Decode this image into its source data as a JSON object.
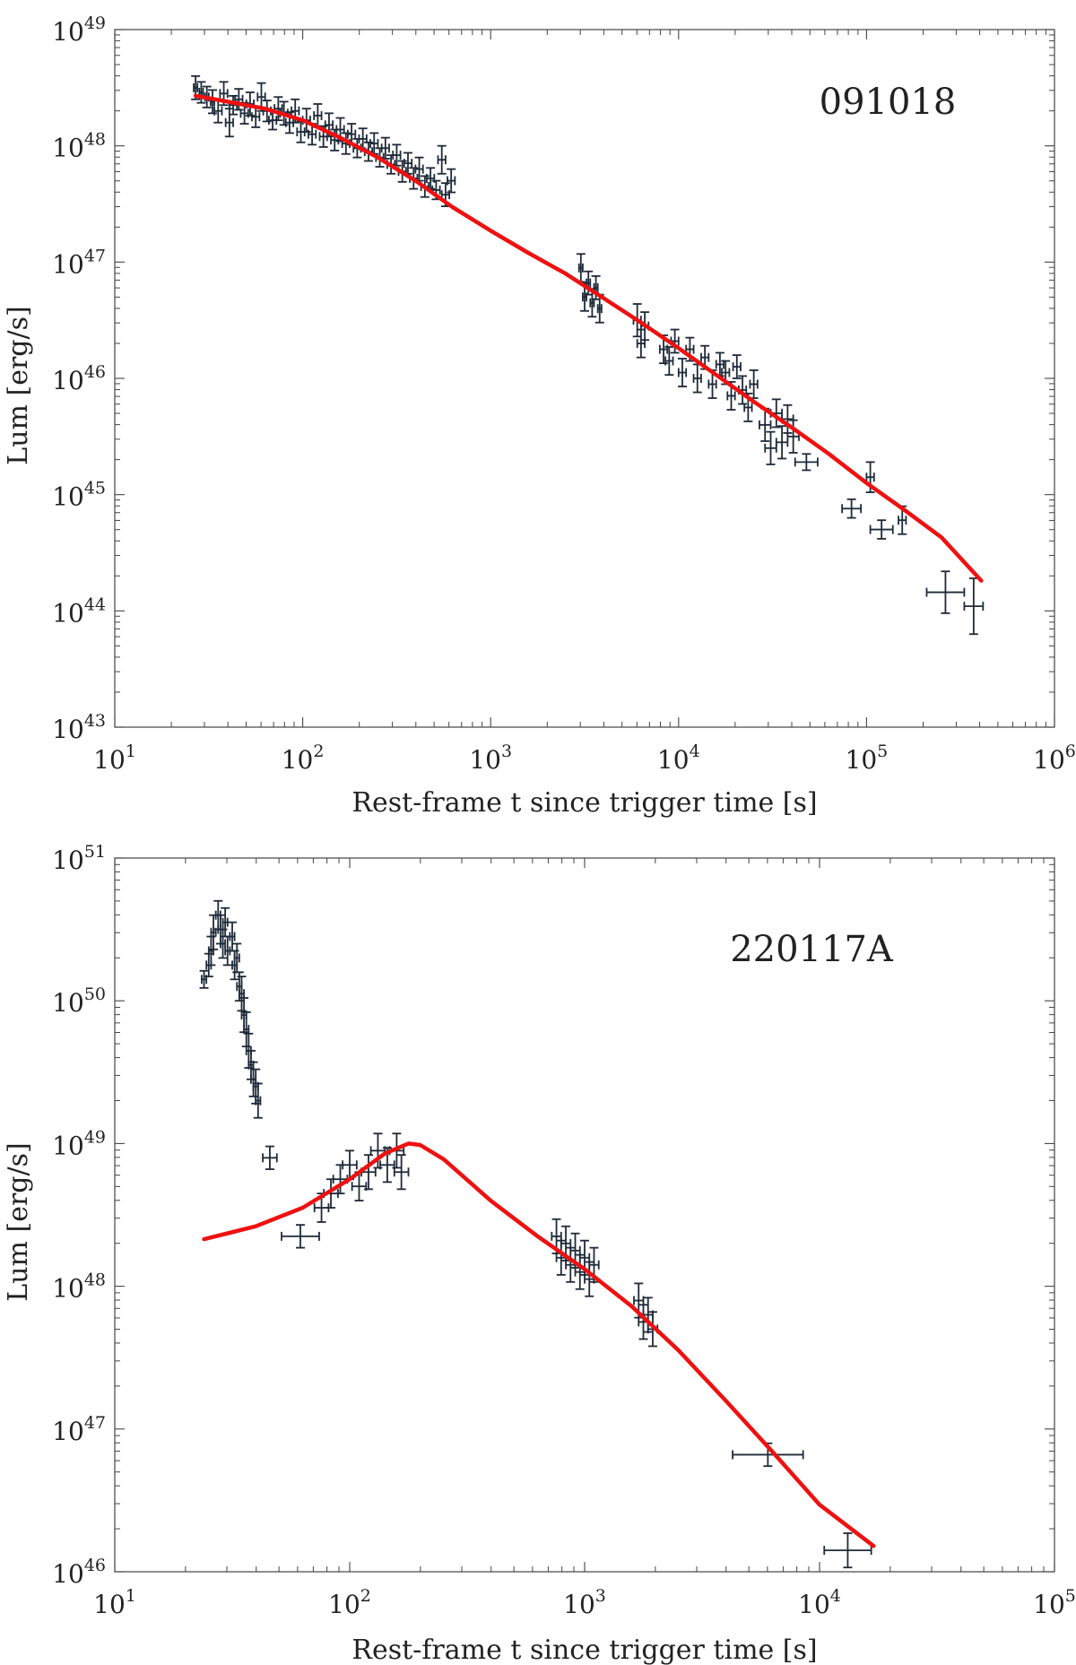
{
  "chart_data": [
    {
      "type": "scatter",
      "annotation": "091018",
      "xlabel": "Rest-frame t since trigger time [s]",
      "ylabel": "Lum [erg/s]",
      "xscale": "log",
      "yscale": "log",
      "xlim_exp": [
        1,
        6
      ],
      "ylim_exp": [
        43,
        49
      ],
      "x_tick_labels": [
        {
          "base": "10",
          "exp": "1"
        },
        {
          "base": "10",
          "exp": "2"
        },
        {
          "base": "10",
          "exp": "3"
        },
        {
          "base": "10",
          "exp": "4"
        },
        {
          "base": "10",
          "exp": "5"
        },
        {
          "base": "10",
          "exp": "6"
        }
      ],
      "y_tick_labels": [
        {
          "base": "10",
          "exp": "43"
        },
        {
          "base": "10",
          "exp": "44"
        },
        {
          "base": "10",
          "exp": "45"
        },
        {
          "base": "10",
          "exp": "46"
        },
        {
          "base": "10",
          "exp": "47"
        },
        {
          "base": "10",
          "exp": "48"
        },
        {
          "base": "10",
          "exp": "49"
        }
      ],
      "colors": {
        "data": "#1e2a38",
        "model": "#ee1111"
      },
      "series": [
        {
          "name": "data",
          "note": "values as log10(t [s]), log10(L [erg/s]); xerr/yerr in dex",
          "points": [
            [
              1.43,
              48.5,
              0.01,
              0.1
            ],
            [
              1.46,
              48.46,
              0.01,
              0.09
            ],
            [
              1.49,
              48.42,
              0.01,
              0.09
            ],
            [
              1.52,
              48.38,
              0.01,
              0.1
            ],
            [
              1.55,
              48.3,
              0.02,
              0.1
            ],
            [
              1.58,
              48.45,
              0.02,
              0.1
            ],
            [
              1.61,
              48.2,
              0.02,
              0.12
            ],
            [
              1.63,
              48.35,
              0.02,
              0.08
            ],
            [
              1.66,
              48.4,
              0.02,
              0.09
            ],
            [
              1.69,
              48.28,
              0.02,
              0.09
            ],
            [
              1.72,
              48.36,
              0.02,
              0.1
            ],
            [
              1.75,
              48.25,
              0.02,
              0.09
            ],
            [
              1.78,
              48.42,
              0.02,
              0.12
            ],
            [
              1.81,
              48.3,
              0.02,
              0.09
            ],
            [
              1.84,
              48.22,
              0.02,
              0.08
            ],
            [
              1.87,
              48.32,
              0.02,
              0.1
            ],
            [
              1.9,
              48.28,
              0.02,
              0.1
            ],
            [
              1.93,
              48.2,
              0.02,
              0.09
            ],
            [
              1.96,
              48.3,
              0.02,
              0.1
            ],
            [
              1.99,
              48.12,
              0.02,
              0.09
            ],
            [
              2.02,
              48.22,
              0.02,
              0.1
            ],
            [
              2.05,
              48.1,
              0.02,
              0.09
            ],
            [
              2.08,
              48.26,
              0.02,
              0.1
            ],
            [
              2.11,
              48.08,
              0.02,
              0.09
            ],
            [
              2.14,
              48.18,
              0.02,
              0.1
            ],
            [
              2.17,
              48.05,
              0.02,
              0.09
            ],
            [
              2.2,
              48.14,
              0.02,
              0.1
            ],
            [
              2.23,
              48.02,
              0.02,
              0.09
            ],
            [
              2.26,
              48.1,
              0.02,
              0.09
            ],
            [
              2.29,
              47.98,
              0.02,
              0.08
            ],
            [
              2.32,
              48.06,
              0.02,
              0.09
            ],
            [
              2.35,
              47.95,
              0.02,
              0.08
            ],
            [
              2.38,
              48.02,
              0.02,
              0.09
            ],
            [
              2.41,
              47.9,
              0.02,
              0.08
            ],
            [
              2.44,
              47.98,
              0.02,
              0.09
            ],
            [
              2.47,
              47.84,
              0.02,
              0.08
            ],
            [
              2.5,
              47.92,
              0.02,
              0.09
            ],
            [
              2.53,
              47.78,
              0.02,
              0.09
            ],
            [
              2.56,
              47.85,
              0.02,
              0.09
            ],
            [
              2.59,
              47.72,
              0.02,
              0.09
            ],
            [
              2.62,
              47.8,
              0.02,
              0.1
            ],
            [
              2.65,
              47.65,
              0.02,
              0.09
            ],
            [
              2.68,
              47.72,
              0.02,
              0.09
            ],
            [
              2.71,
              47.62,
              0.02,
              0.08
            ],
            [
              2.74,
              47.88,
              0.02,
              0.12
            ],
            [
              2.76,
              47.58,
              0.02,
              0.1
            ],
            [
              2.79,
              47.7,
              0.02,
              0.1
            ],
            [
              3.48,
              46.95,
              0.01,
              0.12
            ],
            [
              3.5,
              46.7,
              0.01,
              0.12
            ],
            [
              3.52,
              46.82,
              0.01,
              0.1
            ],
            [
              3.54,
              46.65,
              0.01,
              0.12
            ],
            [
              3.56,
              46.78,
              0.01,
              0.1
            ],
            [
              3.58,
              46.6,
              0.01,
              0.12
            ],
            [
              3.78,
              46.5,
              0.02,
              0.14
            ],
            [
              3.8,
              46.3,
              0.02,
              0.12
            ],
            [
              3.82,
              46.45,
              0.02,
              0.12
            ],
            [
              3.92,
              46.25,
              0.02,
              0.12
            ],
            [
              3.95,
              46.15,
              0.02,
              0.12
            ],
            [
              3.98,
              46.32,
              0.02,
              0.1
            ],
            [
              4.02,
              46.05,
              0.02,
              0.12
            ],
            [
              4.06,
              46.25,
              0.02,
              0.1
            ],
            [
              4.1,
              46.0,
              0.02,
              0.12
            ],
            [
              4.14,
              46.18,
              0.02,
              0.1
            ],
            [
              4.18,
              45.95,
              0.02,
              0.12
            ],
            [
              4.22,
              46.12,
              0.02,
              0.1
            ],
            [
              4.25,
              46.05,
              0.02,
              0.1
            ],
            [
              4.28,
              45.85,
              0.02,
              0.12
            ],
            [
              4.31,
              46.1,
              0.02,
              0.1
            ],
            [
              4.34,
              45.9,
              0.02,
              0.12
            ],
            [
              4.37,
              45.75,
              0.02,
              0.12
            ],
            [
              4.4,
              45.95,
              0.02,
              0.12
            ],
            [
              4.46,
              45.6,
              0.03,
              0.14
            ],
            [
              4.49,
              45.4,
              0.03,
              0.14
            ],
            [
              4.52,
              45.7,
              0.03,
              0.12
            ],
            [
              4.55,
              45.45,
              0.03,
              0.14
            ],
            [
              4.58,
              45.65,
              0.03,
              0.12
            ],
            [
              4.61,
              45.5,
              0.03,
              0.14
            ],
            [
              4.68,
              45.28,
              0.06,
              0.07
            ],
            [
              4.92,
              44.88,
              0.05,
              0.08
            ],
            [
              5.02,
              45.15,
              0.02,
              0.13
            ],
            [
              5.08,
              44.7,
              0.06,
              0.08
            ],
            [
              5.19,
              44.78,
              0.02,
              0.12
            ],
            [
              5.42,
              44.16,
              0.1,
              0.18
            ],
            [
              5.57,
              44.04,
              0.05,
              0.24
            ]
          ]
        },
        {
          "name": "model",
          "points": [
            [
              1.43,
              48.43
            ],
            [
              1.6,
              48.38
            ],
            [
              1.8,
              48.32
            ],
            [
              2.0,
              48.22
            ],
            [
              2.2,
              48.07
            ],
            [
              2.4,
              47.9
            ],
            [
              2.6,
              47.7
            ],
            [
              2.8,
              47.47
            ],
            [
              3.0,
              47.27
            ],
            [
              3.2,
              47.08
            ],
            [
              3.4,
              46.9
            ],
            [
              3.6,
              46.69
            ],
            [
              3.8,
              46.48
            ],
            [
              4.0,
              46.26
            ],
            [
              4.2,
              46.03
            ],
            [
              4.4,
              45.8
            ],
            [
              4.6,
              45.58
            ],
            [
              4.8,
              45.35
            ],
            [
              5.0,
              45.1
            ],
            [
              5.2,
              44.87
            ],
            [
              5.4,
              44.63
            ],
            [
              5.61,
              44.26
            ]
          ]
        }
      ]
    },
    {
      "type": "scatter",
      "annotation": "220117A",
      "xlabel": "Rest-frame t since trigger time [s]",
      "ylabel": "Lum [erg/s]",
      "xscale": "log",
      "yscale": "log",
      "xlim_exp": [
        1,
        5
      ],
      "ylim_exp": [
        46,
        51
      ],
      "x_tick_labels": [
        {
          "base": "10",
          "exp": "1"
        },
        {
          "base": "10",
          "exp": "2"
        },
        {
          "base": "10",
          "exp": "3"
        },
        {
          "base": "10",
          "exp": "4"
        },
        {
          "base": "10",
          "exp": "5"
        }
      ],
      "y_tick_labels": [
        {
          "base": "10",
          "exp": "46"
        },
        {
          "base": "10",
          "exp": "47"
        },
        {
          "base": "10",
          "exp": "48"
        },
        {
          "base": "10",
          "exp": "49"
        },
        {
          "base": "10",
          "exp": "50"
        },
        {
          "base": "10",
          "exp": "51"
        }
      ],
      "colors": {
        "data": "#1e2a38",
        "model": "#ee1111"
      },
      "series": [
        {
          "name": "data",
          "note": "values as log10(t [s]), log10(L [erg/s]); xerr/yerr in dex",
          "points": [
            [
              1.38,
              50.15,
              0.01,
              0.06
            ],
            [
              1.4,
              50.25,
              0.01,
              0.08
            ],
            [
              1.41,
              50.35,
              0.01,
              0.1
            ],
            [
              1.42,
              50.48,
              0.01,
              0.12
            ],
            [
              1.44,
              50.6,
              0.01,
              0.1
            ],
            [
              1.45,
              50.5,
              0.01,
              0.1
            ],
            [
              1.46,
              50.4,
              0.01,
              0.1
            ],
            [
              1.47,
              50.55,
              0.01,
              0.1
            ],
            [
              1.48,
              50.35,
              0.01,
              0.1
            ],
            [
              1.5,
              50.45,
              0.01,
              0.1
            ],
            [
              1.51,
              50.25,
              0.01,
              0.1
            ],
            [
              1.52,
              50.3,
              0.01,
              0.1
            ],
            [
              1.53,
              50.1,
              0.01,
              0.1
            ],
            [
              1.54,
              50.05,
              0.01,
              0.12
            ],
            [
              1.55,
              49.9,
              0.01,
              0.12
            ],
            [
              1.56,
              49.8,
              0.01,
              0.12
            ],
            [
              1.57,
              49.65,
              0.01,
              0.12
            ],
            [
              1.58,
              49.55,
              0.01,
              0.1
            ],
            [
              1.59,
              49.45,
              0.01,
              0.12
            ],
            [
              1.6,
              49.4,
              0.01,
              0.12
            ],
            [
              1.61,
              49.3,
              0.01,
              0.12
            ],
            [
              1.66,
              48.9,
              0.03,
              0.08
            ],
            [
              1.79,
              48.35,
              0.08,
              0.08
            ],
            [
              1.88,
              48.55,
              0.03,
              0.1
            ],
            [
              1.92,
              48.65,
              0.03,
              0.1
            ],
            [
              1.96,
              48.75,
              0.03,
              0.1
            ],
            [
              2.0,
              48.85,
              0.03,
              0.1
            ],
            [
              2.04,
              48.7,
              0.03,
              0.1
            ],
            [
              2.08,
              48.8,
              0.03,
              0.12
            ],
            [
              2.12,
              48.95,
              0.03,
              0.12
            ],
            [
              2.16,
              48.85,
              0.03,
              0.12
            ],
            [
              2.2,
              48.95,
              0.03,
              0.12
            ],
            [
              2.22,
              48.8,
              0.03,
              0.12
            ],
            [
              2.88,
              48.35,
              0.02,
              0.12
            ],
            [
              2.9,
              48.2,
              0.02,
              0.12
            ],
            [
              2.92,
              48.3,
              0.02,
              0.12
            ],
            [
              2.94,
              48.15,
              0.02,
              0.12
            ],
            [
              2.96,
              48.25,
              0.02,
              0.12
            ],
            [
              2.98,
              48.1,
              0.02,
              0.12
            ],
            [
              3.0,
              48.2,
              0.02,
              0.12
            ],
            [
              3.02,
              48.05,
              0.02,
              0.12
            ],
            [
              3.04,
              48.15,
              0.02,
              0.12
            ],
            [
              3.23,
              47.9,
              0.02,
              0.12
            ],
            [
              3.25,
              47.75,
              0.02,
              0.12
            ],
            [
              3.27,
              47.8,
              0.02,
              0.12
            ],
            [
              3.29,
              47.7,
              0.02,
              0.12
            ],
            [
              3.78,
              46.82,
              0.15,
              0.08
            ],
            [
              4.12,
              46.15,
              0.1,
              0.12
            ]
          ]
        },
        {
          "name": "model",
          "points": [
            [
              1.38,
              48.33
            ],
            [
              1.6,
              48.42
            ],
            [
              1.8,
              48.55
            ],
            [
              2.0,
              48.75
            ],
            [
              2.15,
              48.93
            ],
            [
              2.25,
              49.0
            ],
            [
              2.3,
              48.99
            ],
            [
              2.4,
              48.89
            ],
            [
              2.6,
              48.6
            ],
            [
              2.8,
              48.35
            ],
            [
              3.0,
              48.12
            ],
            [
              3.2,
              47.86
            ],
            [
              3.4,
              47.55
            ],
            [
              3.6,
              47.2
            ],
            [
              3.8,
              46.84
            ],
            [
              4.0,
              46.47
            ],
            [
              4.23,
              46.18
            ]
          ]
        }
      ]
    }
  ]
}
